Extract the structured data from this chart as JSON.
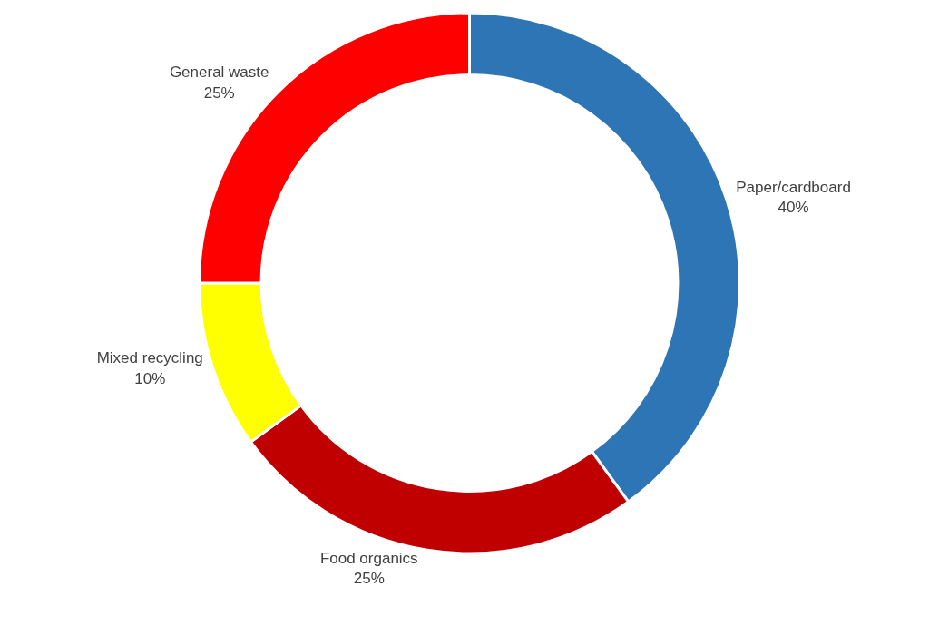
{
  "chart_data": {
    "type": "donut",
    "categories": [
      "Paper/cardboard",
      "Food organics",
      "Mixed recycling",
      "General waste"
    ],
    "values": [
      40,
      25,
      10,
      25
    ],
    "value_labels": [
      "40%",
      "25%",
      "10%",
      "25%"
    ],
    "colors": [
      "#2e75b6",
      "#c00000",
      "#ffff00",
      "#ff0000"
    ],
    "legend": false
  }
}
